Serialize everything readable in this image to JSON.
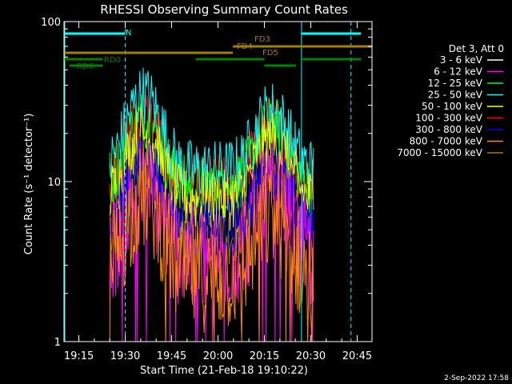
{
  "chart_data": {
    "type": "line",
    "title": "RHESSI Observing Summary Count Rates",
    "xlabel": "Start Time (21-Feb-18 19:10:22)",
    "ylabel": "Count Rate (s⁻¹ detector⁻¹)",
    "yscale": "log",
    "ylim": [
      1,
      100
    ],
    "xlim_minutes": [
      19.17,
      20.83
    ],
    "x_ticks": [
      "19:15",
      "19:30",
      "19:45",
      "20:00",
      "20:15",
      "20:30",
      "20:45"
    ],
    "y_ticks": [
      "1",
      "10",
      "100"
    ],
    "legend_title": "Det 3, Att 0",
    "legend_position": "right",
    "series": [
      {
        "name": "3 - 6 keV",
        "color": "#000000",
        "peak1": 18,
        "peak2": 16
      },
      {
        "name": "6 - 12 keV",
        "color": "#ff00ff",
        "peak1": 9,
        "peak2": 8
      },
      {
        "name": "12 - 25 keV",
        "color": "#00ff00",
        "peak1": 25,
        "peak2": 22
      },
      {
        "name": "25 - 50 keV",
        "color": "#00ffff",
        "peak1": 35,
        "peak2": 28
      },
      {
        "name": "50 - 100 keV",
        "color": "#ffff00",
        "peak1": 20,
        "peak2": 18
      },
      {
        "name": "100 - 300 keV",
        "color": "#ff0000",
        "peak1": 26,
        "peak2": 23
      },
      {
        "name": "300 - 800 keV",
        "color": "#0000ff",
        "peak1": 13,
        "peak2": 12
      },
      {
        "name": "800 - 7000 keV",
        "color": "#ff8c00",
        "peak1": 8,
        "peak2": 6
      },
      {
        "name": "7000 - 15000 keV",
        "color": "#a08000",
        "peak1": 12,
        "peak2": 11
      }
    ],
    "data_window": [
      "19:25",
      "20:31"
    ],
    "flags": [
      {
        "label": "N",
        "color": "#00ffff"
      },
      {
        "label": "FD3",
        "color": "#a08000"
      },
      {
        "label": "FD4",
        "color": "#a08000"
      },
      {
        "label": "FD5",
        "color": "#a08000"
      },
      {
        "label": "RD0",
        "color": "#008000"
      },
      {
        "label": "RD6",
        "color": "#008000"
      }
    ],
    "night_markers": [
      "19:30",
      "20:27",
      "20:43"
    ]
  },
  "footer_date": "2-Sep-2022 17:58"
}
